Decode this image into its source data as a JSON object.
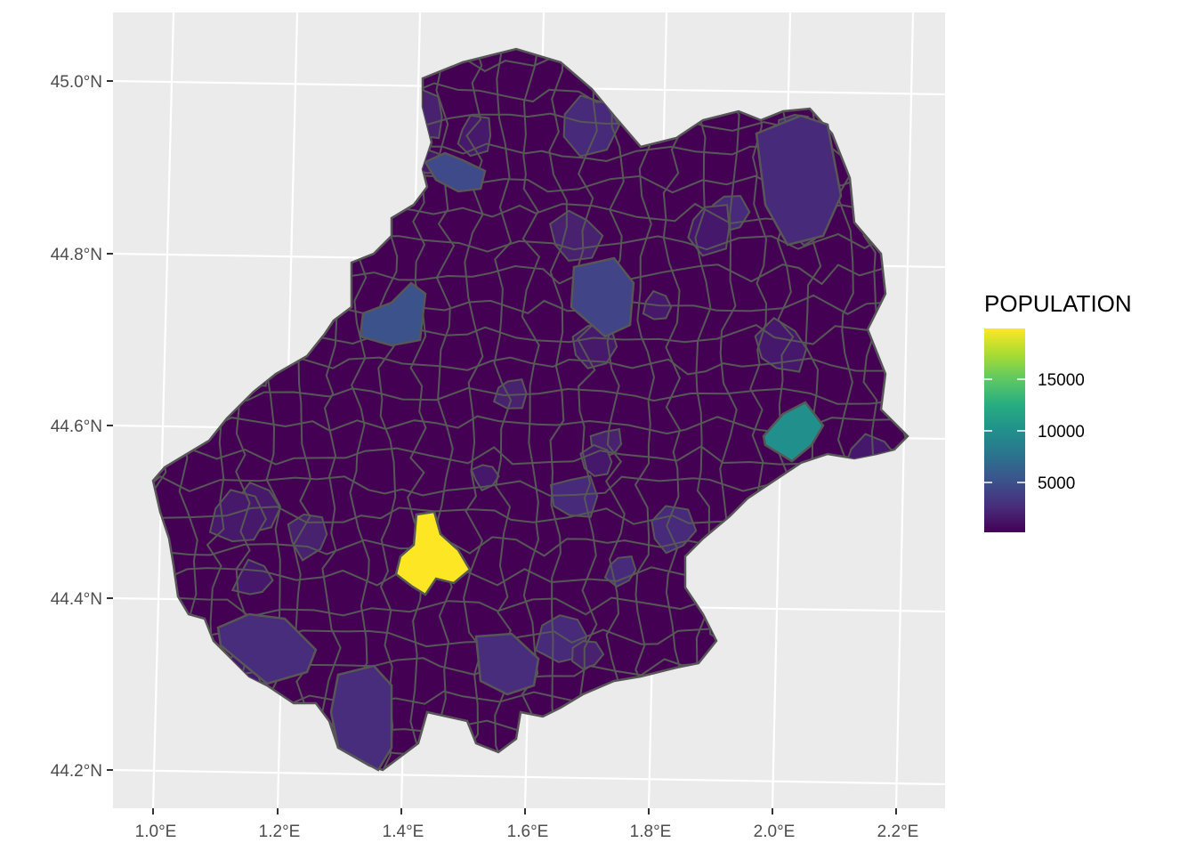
{
  "map": {
    "panel_background": "#ebebeb",
    "gridline_color": "#ffffff",
    "border_color": "#575757",
    "lat_labels": [
      "45.0°N",
      "44.8°N",
      "44.6°N",
      "44.4°N",
      "44.2°N"
    ],
    "lon_labels": [
      "1.0°E",
      "1.2°E",
      "1.4°E",
      "1.6°E",
      "1.8°E",
      "2.0°E",
      "2.2°E"
    ],
    "base_fill": "#440154",
    "highlight_regions": [
      {
        "name": "highest-population-commune",
        "fill": "#fde725"
      },
      {
        "name": "east-town",
        "fill": "#21908c"
      },
      {
        "name": "north-west-town",
        "fill": "#3e4a89"
      },
      {
        "name": "central-north-town",
        "fill": "#414487"
      },
      {
        "name": "west-town",
        "fill": "#3b528b"
      },
      {
        "name": "south-town",
        "fill": "#472d7b"
      }
    ]
  },
  "legend": {
    "title": "POPULATION",
    "labels": [
      "15000",
      "10000",
      "5000"
    ],
    "colors": [
      "#440154",
      "#472d7b",
      "#3b528b",
      "#2c728e",
      "#21908c",
      "#27ad81",
      "#5dc863",
      "#aadc32",
      "#fde725"
    ]
  }
}
